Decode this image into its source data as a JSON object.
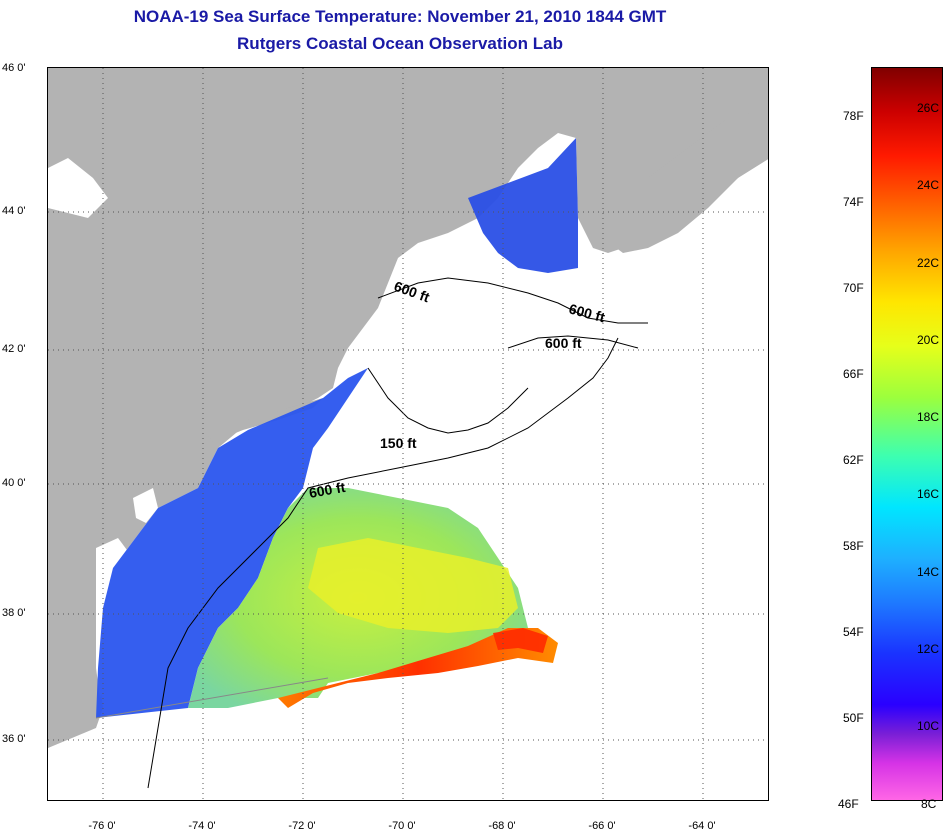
{
  "header": {
    "title": "NOAA-19 Sea Surface Temperature:  November 21, 2010 1844 GMT",
    "subtitle": "Rutgers Coastal Ocean Observation Lab"
  },
  "map": {
    "latitude_labels": [
      "46 0'",
      "44 0'",
      "42 0'",
      "40 0'",
      "38 0'",
      "36 0'"
    ],
    "longitude_labels": [
      "-76 0'",
      "-74 0'",
      "-72 0'",
      "-70 0'",
      "-68 0'",
      "-66 0'",
      "-64 0'"
    ],
    "contour_labels": [
      "600 ft",
      "600 ft",
      "600 ft",
      "150 ft",
      "600 ft"
    ]
  },
  "colorbar": {
    "fahrenheit_labels": [
      "78F",
      "74F",
      "70F",
      "66F",
      "62F",
      "58F",
      "54F",
      "50F",
      "46F"
    ],
    "celsius_labels": [
      "26C",
      "24C",
      "22C",
      "20C",
      "18C",
      "16C",
      "14C",
      "12C",
      "10C",
      "8C"
    ]
  },
  "colors": {
    "land": "#b3b3b3",
    "title": "#1a1aa6"
  }
}
